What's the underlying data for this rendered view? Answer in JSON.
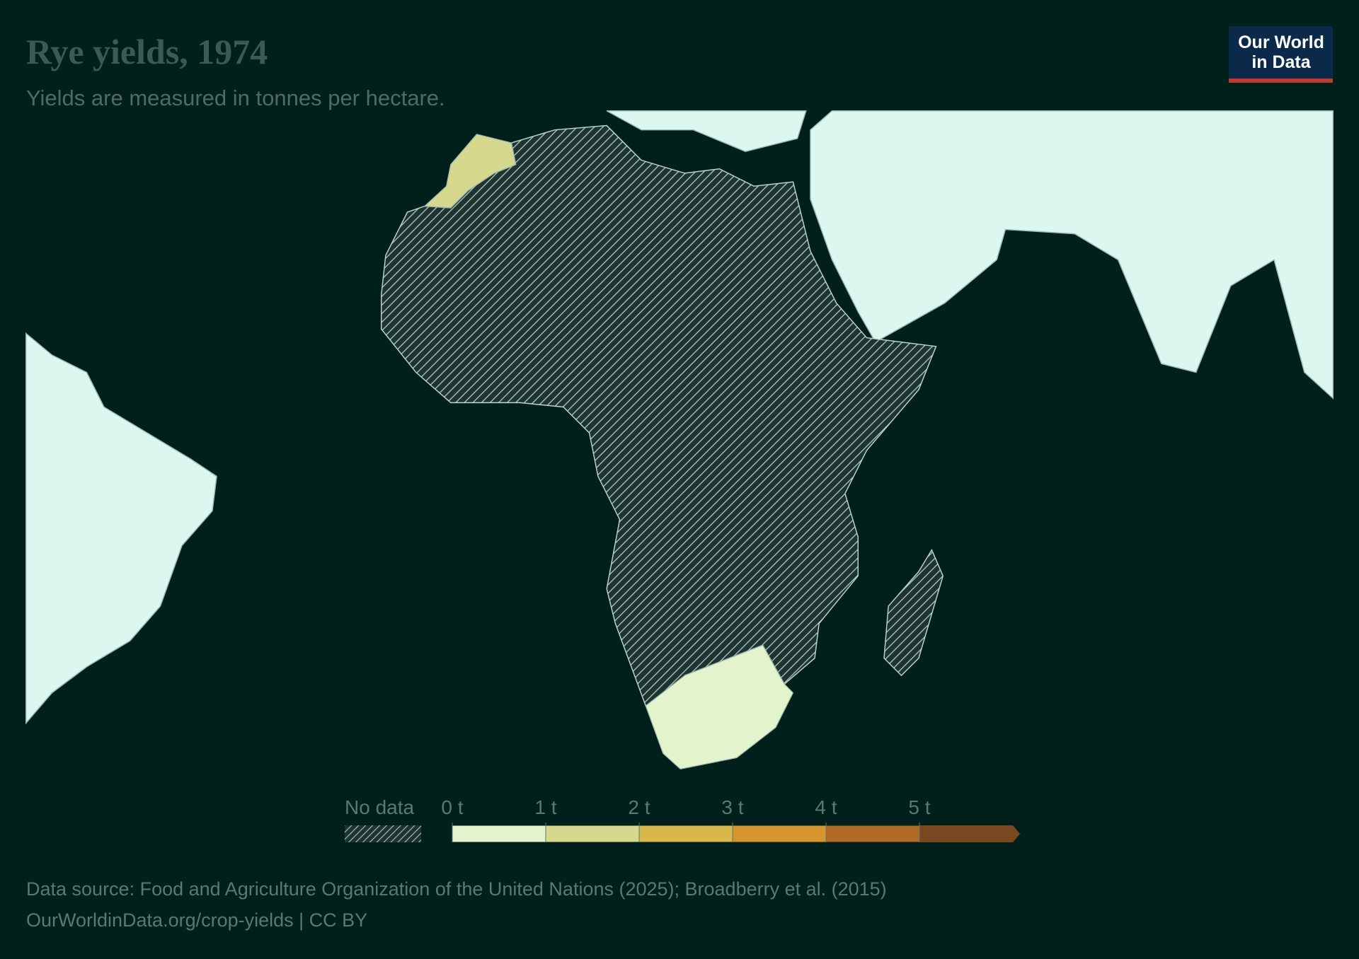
{
  "header": {
    "title": "Rye yields, 1974",
    "subtitle": "Yields are measured in tonnes per hectare.",
    "logo": [
      "Our World",
      "in Data"
    ]
  },
  "legend": {
    "no_data": "No data",
    "ticks": [
      {
        "value": 0,
        "label": "0 t"
      },
      {
        "value": 1,
        "label": "1 t"
      },
      {
        "value": 2,
        "label": "2 t"
      },
      {
        "value": 3,
        "label": "3 t"
      },
      {
        "value": 4,
        "label": "4 t"
      },
      {
        "value": 5,
        "label": "5 t"
      }
    ],
    "colors": [
      "#e3f4cc",
      "#d6d88e",
      "#d8b84a",
      "#d6952f",
      "#b06a25",
      "#7a4820"
    ]
  },
  "footer": {
    "source": "Data source: Food and Agriculture Organization of the United Nations (2025); Broadberry et al. (2015)",
    "url": "OurWorldinData.org/crop-yields | CC BY"
  }
}
